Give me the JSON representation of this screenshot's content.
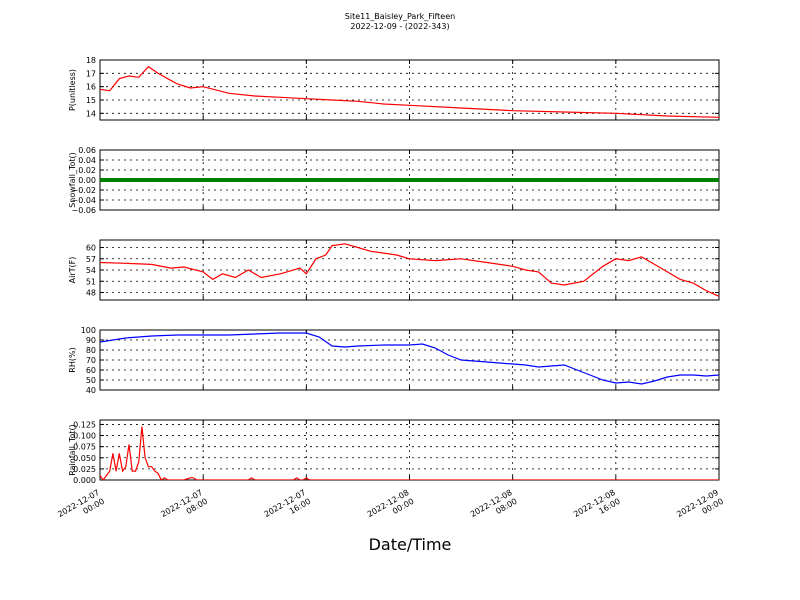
{
  "figure": {
    "title_line1": "Site11_Baisley_Park_Fifteen",
    "title_line2": "2022-12-09 - (2022-343)",
    "xlabel": "Date/Time"
  },
  "chart_data": [
    {
      "type": "line",
      "ylabel": "P(unitless)",
      "color": "#ff0000",
      "ylim": [
        13.5,
        18
      ],
      "yticks": [
        14,
        15,
        16,
        17,
        18
      ],
      "ytick_labels": [
        "14",
        "15",
        "16",
        "17",
        "18"
      ],
      "grid": true,
      "series": [
        {
          "x": [
            "2022-12-07 00:00",
            "2022-12-07 00:45",
            "2022-12-07 01:30",
            "2022-12-07 02:15",
            "2022-12-07 03:00",
            "2022-12-07 03:45",
            "2022-12-07 04:30",
            "2022-12-07 05:15",
            "2022-12-07 06:00",
            "2022-12-07 07:00",
            "2022-12-07 08:00",
            "2022-12-07 10:00",
            "2022-12-07 12:00",
            "2022-12-07 14:00",
            "2022-12-07 16:00",
            "2022-12-07 18:00",
            "2022-12-07 20:00",
            "2022-12-07 22:00",
            "2022-12-08 00:00",
            "2022-12-08 04:00",
            "2022-12-08 08:00",
            "2022-12-08 12:00",
            "2022-12-08 16:00",
            "2022-12-08 20:00",
            "2022-12-09 00:00"
          ],
          "y": [
            15.8,
            15.7,
            16.6,
            16.8,
            16.7,
            17.5,
            17.0,
            16.6,
            16.2,
            15.9,
            16.0,
            15.5,
            15.3,
            15.2,
            15.1,
            15.0,
            14.9,
            14.7,
            14.6,
            14.4,
            14.2,
            14.1,
            14.0,
            13.8,
            13.7
          ]
        }
      ]
    },
    {
      "type": "line",
      "ylabel": "Snowfall_Tot()",
      "color": "#008000",
      "ylim": [
        -0.06,
        0.06
      ],
      "yticks": [
        -0.06,
        -0.04,
        -0.02,
        0.0,
        0.02,
        0.04,
        0.06
      ],
      "ytick_labels": [
        "−0.06",
        "−0.04",
        "−0.02",
        "0.00",
        "0.02",
        "0.04",
        "0.06"
      ],
      "grid": true,
      "series": [
        {
          "x": [
            "2022-12-07 00:00",
            "2022-12-09 00:00"
          ],
          "y": [
            0.0,
            0.0
          ]
        }
      ]
    },
    {
      "type": "line",
      "ylabel": "AirT(F)",
      "color": "#ff0000",
      "ylim": [
        46,
        62
      ],
      "yticks": [
        48,
        51,
        54,
        57,
        60
      ],
      "ytick_labels": [
        "48",
        "51",
        "54",
        "57",
        "60"
      ],
      "grid": true,
      "series": [
        {
          "x": [
            "2022-12-07 00:00",
            "2022-12-07 02:00",
            "2022-12-07 04:00",
            "2022-12-07 05:30",
            "2022-12-07 06:30",
            "2022-12-07 08:00",
            "2022-12-07 08:45",
            "2022-12-07 09:30",
            "2022-12-07 10:30",
            "2022-12-07 11:30",
            "2022-12-07 12:30",
            "2022-12-07 14:00",
            "2022-12-07 15:30",
            "2022-12-07 16:00",
            "2022-12-07 16:45",
            "2022-12-07 17:30",
            "2022-12-07 18:00",
            "2022-12-07 19:00",
            "2022-12-07 20:00",
            "2022-12-07 21:00",
            "2022-12-07 22:00",
            "2022-12-07 23:00",
            "2022-12-08 00:00",
            "2022-12-08 02:00",
            "2022-12-08 04:00",
            "2022-12-08 06:00",
            "2022-12-08 08:00",
            "2022-12-08 09:00",
            "2022-12-08 10:00",
            "2022-12-08 11:00",
            "2022-12-08 12:00",
            "2022-12-08 13:30",
            "2022-12-08 15:00",
            "2022-12-08 16:00",
            "2022-12-08 17:00",
            "2022-12-08 18:00",
            "2022-12-08 19:00",
            "2022-12-08 20:00",
            "2022-12-08 21:00",
            "2022-12-08 22:00",
            "2022-12-08 23:00",
            "2022-12-09 00:00"
          ],
          "y": [
            56,
            55.8,
            55.5,
            54.5,
            54.8,
            53.5,
            51.5,
            53,
            52,
            54,
            52,
            53,
            54.5,
            53,
            57,
            58,
            60.5,
            61,
            60,
            59,
            58.5,
            58,
            57,
            56.5,
            57,
            56,
            55,
            54,
            53.5,
            50.5,
            50,
            51,
            55,
            57,
            56.5,
            57.5,
            55.5,
            53.5,
            51.5,
            50.5,
            48.5,
            47
          ]
        }
      ]
    },
    {
      "type": "line",
      "ylabel": "RH(%)",
      "color": "#0000ff",
      "ylim": [
        40,
        100
      ],
      "yticks": [
        40,
        50,
        60,
        70,
        80,
        90,
        100
      ],
      "ytick_labels": [
        "40",
        "50",
        "60",
        "70",
        "80",
        "90",
        "100"
      ],
      "grid": true,
      "series": [
        {
          "x": [
            "2022-12-07 00:00",
            "2022-12-07 02:00",
            "2022-12-07 04:00",
            "2022-12-07 06:00",
            "2022-12-07 08:00",
            "2022-12-07 10:00",
            "2022-12-07 12:00",
            "2022-12-07 14:00",
            "2022-12-07 16:00",
            "2022-12-07 17:00",
            "2022-12-07 18:00",
            "2022-12-07 19:00",
            "2022-12-07 20:00",
            "2022-12-07 22:00",
            "2022-12-08 00:00",
            "2022-12-08 01:00",
            "2022-12-08 02:00",
            "2022-12-08 03:00",
            "2022-12-08 04:00",
            "2022-12-08 06:00",
            "2022-12-08 08:00",
            "2022-12-08 09:00",
            "2022-12-08 10:00",
            "2022-12-08 12:00",
            "2022-12-08 13:00",
            "2022-12-08 14:00",
            "2022-12-08 15:00",
            "2022-12-08 16:00",
            "2022-12-08 17:00",
            "2022-12-08 18:00",
            "2022-12-08 19:00",
            "2022-12-08 20:00",
            "2022-12-08 21:00",
            "2022-12-08 22:00",
            "2022-12-08 23:00",
            "2022-12-09 00:00"
          ],
          "y": [
            88,
            92,
            94,
            95,
            95,
            95,
            96,
            97,
            97,
            93,
            84,
            83,
            84,
            85,
            85,
            86,
            82,
            75,
            70,
            68,
            66,
            65,
            63,
            65,
            60,
            55,
            50,
            47,
            48,
            46,
            49,
            53,
            55,
            55,
            54,
            55
          ]
        }
      ]
    },
    {
      "type": "line",
      "ylabel": "Rainfall_Tot()",
      "color": "#ff0000",
      "ylim": [
        0,
        0.135
      ],
      "yticks": [
        0.0,
        0.025,
        0.05,
        0.075,
        0.1,
        0.125
      ],
      "ytick_labels": [
        "0.000",
        "0.025",
        "0.050",
        "0.075",
        "0.100",
        "0.125"
      ],
      "grid": true,
      "series": [
        {
          "x": [
            "2022-12-07 00:00",
            "2022-12-07 00:15",
            "2022-12-07 00:30",
            "2022-12-07 00:45",
            "2022-12-07 01:00",
            "2022-12-07 01:15",
            "2022-12-07 01:30",
            "2022-12-07 01:45",
            "2022-12-07 02:00",
            "2022-12-07 02:15",
            "2022-12-07 02:30",
            "2022-12-07 02:45",
            "2022-12-07 03:00",
            "2022-12-07 03:15",
            "2022-12-07 03:30",
            "2022-12-07 03:45",
            "2022-12-07 04:00",
            "2022-12-07 04:15",
            "2022-12-07 04:30",
            "2022-12-07 04:45",
            "2022-12-07 05:00",
            "2022-12-07 05:15",
            "2022-12-07 05:30",
            "2022-12-07 06:00",
            "2022-12-07 06:30",
            "2022-12-07 07:00",
            "2022-12-07 07:15",
            "2022-12-07 07:30",
            "2022-12-07 11:30",
            "2022-12-07 11:45",
            "2022-12-07 12:00",
            "2022-12-07 15:00",
            "2022-12-07 15:15",
            "2022-12-07 15:30",
            "2022-12-07 15:45",
            "2022-12-07 16:00",
            "2022-12-07 16:15",
            "2022-12-09 00:00"
          ],
          "y": [
            0.01,
            0.0,
            0.01,
            0.02,
            0.06,
            0.02,
            0.06,
            0.02,
            0.03,
            0.08,
            0.02,
            0.02,
            0.04,
            0.12,
            0.05,
            0.03,
            0.03,
            0.02,
            0.015,
            0.0,
            0.005,
            0.0,
            0.0,
            0.0,
            0.0,
            0.005,
            0.005,
            0.0,
            0.0,
            0.005,
            0.0,
            0.0,
            0.005,
            0.0,
            0.0,
            0.005,
            0.0,
            0.0
          ]
        }
      ]
    }
  ],
  "x_axis": {
    "range": [
      "2022-12-07 00:00",
      "2022-12-09 00:00"
    ],
    "ticks": [
      "2022-12-07 00:00",
      "2022-12-07 08:00",
      "2022-12-07 16:00",
      "2022-12-08 00:00",
      "2022-12-08 08:00",
      "2022-12-08 16:00",
      "2022-12-09 00:00"
    ],
    "tick_labels": [
      [
        "2022-12-07",
        "00:00"
      ],
      [
        "2022-12-07",
        "08:00"
      ],
      [
        "2022-12-07",
        "16:00"
      ],
      [
        "2022-12-08",
        "00:00"
      ],
      [
        "2022-12-08",
        "08:00"
      ],
      [
        "2022-12-08",
        "16:00"
      ],
      [
        "2022-12-09",
        "00:00"
      ]
    ]
  }
}
